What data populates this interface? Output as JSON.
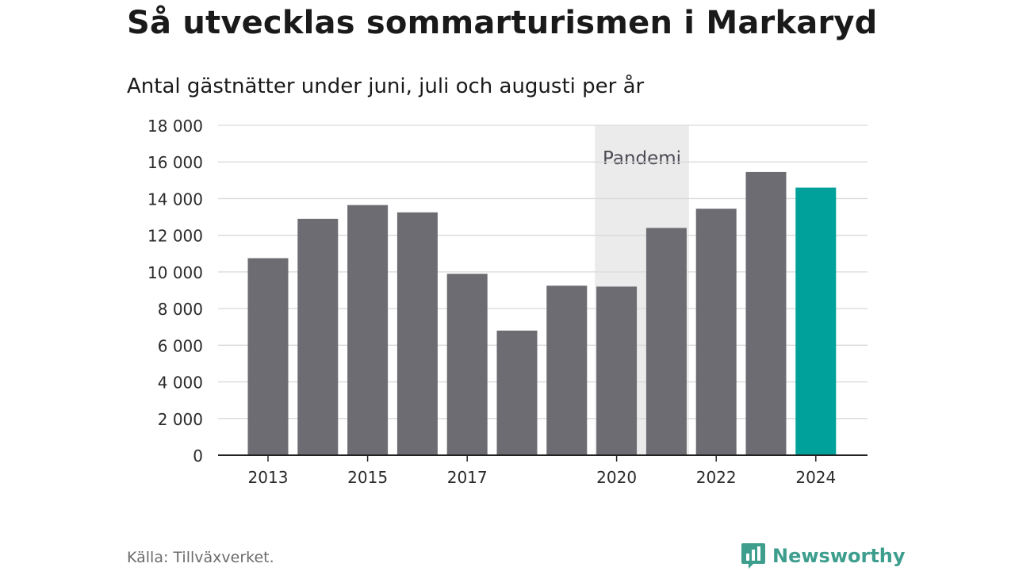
{
  "header": {
    "title": "Så utvecklas sommarturismen i Markaryd",
    "subtitle": "Antal gästnätter under juni, juli och augusti per år"
  },
  "footer": {
    "source": "Källa: Tillväxverket.",
    "brand": "Newsworthy",
    "brand_color": "#3e9e8e",
    "brand_icon": "newsworthy-chart-bubble-icon"
  },
  "chart_data": {
    "type": "bar",
    "categories": [
      "2013",
      "2014",
      "2015",
      "2016",
      "2017",
      "2018",
      "2019",
      "2020",
      "2021",
      "2022",
      "2023",
      "2024"
    ],
    "values": [
      10750,
      12900,
      13650,
      13250,
      9900,
      6800,
      9250,
      9200,
      12400,
      13450,
      15450,
      14600
    ],
    "tick_labels_x": [
      "2013",
      "2015",
      "2017",
      "2020",
      "2022",
      "2024"
    ],
    "yticks": [
      0,
      2000,
      4000,
      6000,
      8000,
      10000,
      12000,
      14000,
      16000,
      18000
    ],
    "ytick_labels": [
      "0",
      "2 000",
      "4 000",
      "6 000",
      "8 000",
      "10 000",
      "12 000",
      "14 000",
      "16 000",
      "18 000"
    ],
    "ylim": [
      0,
      18000
    ],
    "grid": true,
    "bar_color": "#6d6c72",
    "highlight_category": "2024",
    "highlight_color": "#00a19a",
    "shaded_region": {
      "from": "2019",
      "to": "2021",
      "label": "Pandemi",
      "color": "#ebebeb"
    },
    "xlabel": "",
    "ylabel": ""
  }
}
